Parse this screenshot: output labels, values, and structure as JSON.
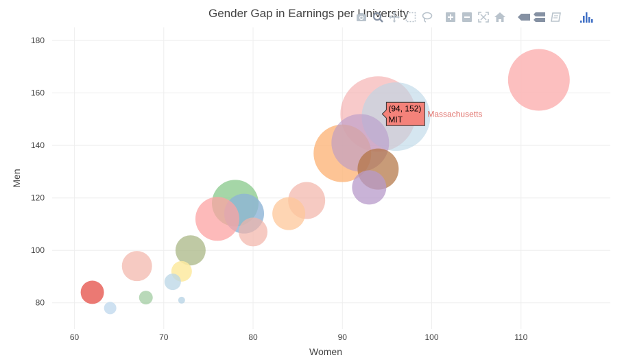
{
  "chart_data": {
    "type": "scatter",
    "title": "Gender Gap in Earnings per University",
    "xlabel": "Women",
    "ylabel": "Men",
    "xlim": [
      57.5,
      120
    ],
    "ylim": [
      70,
      185
    ],
    "x_ticks": [
      60,
      70,
      80,
      90,
      100,
      110
    ],
    "y_ticks": [
      80,
      100,
      120,
      140,
      160,
      180
    ],
    "grid": true,
    "legend": "none",
    "points": [
      {
        "name": "MIT",
        "state": "Massachusetts",
        "x": 94,
        "y": 152,
        "size": 55,
        "color": "#f4a6a6",
        "opacity": 0.6
      },
      {
        "name": "",
        "x": 96,
        "y": 151,
        "size": 50,
        "color": "#b9d5e6",
        "opacity": 0.6
      },
      {
        "name": "",
        "x": 112,
        "y": 165,
        "size": 45,
        "color": "#fbb4b4",
        "opacity": 0.85
      },
      {
        "name": "",
        "x": 90,
        "y": 137,
        "size": 42,
        "color": "#fdb57a",
        "opacity": 0.8
      },
      {
        "name": "",
        "x": 92,
        "y": 141,
        "size": 42,
        "color": "#b79ac9",
        "opacity": 0.6
      },
      {
        "name": "",
        "x": 94,
        "y": 131,
        "size": 30,
        "color": "#b0703e",
        "opacity": 0.7
      },
      {
        "name": "",
        "x": 93,
        "y": 124,
        "size": 25,
        "color": "#b79ac9",
        "opacity": 0.75
      },
      {
        "name": "",
        "x": 86,
        "y": 119,
        "size": 27,
        "color": "#f2b3a8",
        "opacity": 0.7
      },
      {
        "name": "",
        "x": 84,
        "y": 114,
        "size": 24,
        "color": "#fdc79a",
        "opacity": 0.75
      },
      {
        "name": "",
        "x": 78,
        "y": 118,
        "size": 34,
        "color": "#87c889",
        "opacity": 0.75
      },
      {
        "name": "",
        "x": 79,
        "y": 114,
        "size": 29,
        "color": "#8db4d6",
        "opacity": 0.8
      },
      {
        "name": "",
        "x": 76,
        "y": 112,
        "size": 32,
        "color": "#fca3a3",
        "opacity": 0.75
      },
      {
        "name": "",
        "x": 80,
        "y": 107,
        "size": 21,
        "color": "#f2b3a8",
        "opacity": 0.7
      },
      {
        "name": "",
        "x": 73,
        "y": 100,
        "size": 22,
        "color": "#aab785",
        "opacity": 0.75
      },
      {
        "name": "",
        "x": 72,
        "y": 92,
        "size": 15,
        "color": "#fdeaa0",
        "opacity": 0.85
      },
      {
        "name": "",
        "x": 71,
        "y": 88,
        "size": 12,
        "color": "#b9d5e6",
        "opacity": 0.75
      },
      {
        "name": "",
        "x": 67,
        "y": 94,
        "size": 22,
        "color": "#f2b3a8",
        "opacity": 0.7
      },
      {
        "name": "",
        "x": 68,
        "y": 82,
        "size": 10,
        "color": "#a8cfa8",
        "opacity": 0.8
      },
      {
        "name": "",
        "x": 72,
        "y": 81,
        "size": 5,
        "color": "#b9d5e6",
        "opacity": 0.8
      },
      {
        "name": "",
        "x": 62,
        "y": 84,
        "size": 17,
        "color": "#e8625a",
        "opacity": 0.85
      },
      {
        "name": "",
        "x": 64,
        "y": 78,
        "size": 9,
        "color": "#c6dcee",
        "opacity": 0.85
      }
    ],
    "hover": {
      "x": 94,
      "y": 152,
      "coords_label": "(94, 152)",
      "name_label": "MIT",
      "state_label": "Massachusetts",
      "bg_color": "#f4827a",
      "state_color": "#e0706a"
    }
  },
  "modebar": {
    "icons": [
      "camera-icon",
      "zoom-icon",
      "pan-icon",
      "box-select-icon",
      "lasso-icon",
      "zoom-in-icon",
      "zoom-out-icon",
      "autoscale-icon",
      "reset-axes-icon",
      "spike-lines-icon",
      "compare-hover-icon",
      "closest-hover-icon",
      "plotly-logo-icon"
    ],
    "icon_color": "#b9c3cc",
    "active_color": "#8591a3",
    "logo_color": "#3f6fc5"
  }
}
